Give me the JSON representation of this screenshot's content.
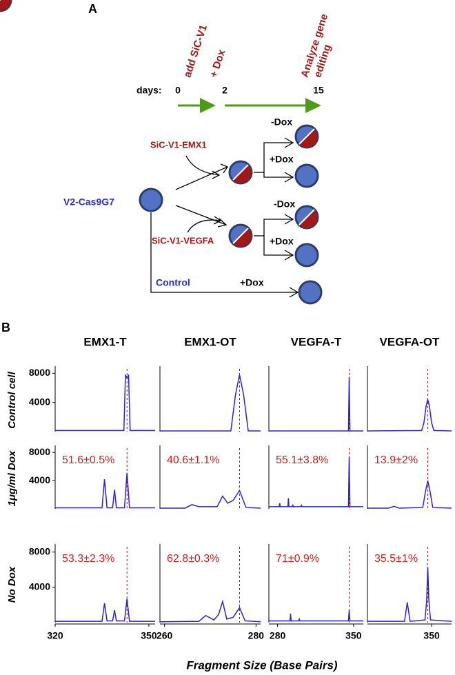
{
  "panel_a": {
    "label": "A",
    "days_label": "days:",
    "days": [
      "0",
      "2",
      "15"
    ],
    "steps": [
      "add SiC-V1",
      "+ Dox",
      [
        "Analyze gene",
        "editing"
      ]
    ],
    "cell_line": "V2-Cas9G7",
    "constructs": [
      "SiC-V1-EMX1",
      "SiC-V1-VEGFA"
    ],
    "control": "Control",
    "treatments": [
      "-Dox",
      "+Dox",
      "-Dox",
      "+Dox",
      "+Dox"
    ]
  },
  "panel_b": {
    "label": "B",
    "columns": [
      "EMX1-T",
      "EMX1-OT",
      "VEGFA-T",
      "VEGFA-OT"
    ],
    "rows": [
      "Control cell",
      "1μg/ml Dox",
      "No Dox"
    ],
    "x_axis_label": "Fragment Size (Base Pairs)"
  },
  "chart_data": [
    {
      "type": "line",
      "color": "#2a22dd",
      "x": [
        320,
        342,
        342.5,
        343,
        343.5,
        344,
        352
      ],
      "values": [
        150,
        150,
        7800,
        7300,
        7800,
        150,
        150
      ],
      "xlim": [
        320,
        352
      ],
      "ylim": [
        0,
        8600
      ],
      "yticks": [
        4000,
        8000
      ],
      "ref_x": 343
    },
    {
      "type": "line",
      "color": "#2a22dd",
      "x": [
        259,
        274.5,
        275.5,
        276.4,
        277.3,
        278.3,
        281
      ],
      "values": [
        100,
        100,
        5000,
        7800,
        5000,
        100,
        100
      ],
      "xlim": [
        259,
        281
      ],
      "ylim": [
        0,
        8600
      ],
      "ref_x": 276.4
    },
    {
      "type": "line",
      "color": "#2a22dd",
      "x": [
        272,
        345.3,
        346,
        346.7,
        359
      ],
      "values": [
        100,
        100,
        7500,
        100,
        100
      ],
      "xlim": [
        272,
        359
      ],
      "ylim": [
        0,
        8600
      ],
      "ref_x": 346
    },
    {
      "type": "line",
      "color": "#2a22dd",
      "x": [
        292,
        341,
        343,
        345,
        346.5,
        348,
        350,
        352,
        368
      ],
      "values": [
        100,
        150,
        1200,
        3500,
        4400,
        3500,
        1200,
        150,
        100
      ],
      "xlim": [
        292,
        368
      ],
      "ylim": [
        0,
        8600
      ],
      "ref_x": 346.5
    },
    {
      "type": "line",
      "color": "#2a22dd",
      "x": [
        320,
        335,
        335.8,
        336.6,
        338.4,
        339,
        339.6,
        342.2,
        343,
        343.8,
        352
      ],
      "values": [
        150,
        150,
        4200,
        150,
        150,
        2700,
        150,
        150,
        5100,
        150,
        150
      ],
      "xlim": [
        320,
        352
      ],
      "ylim": [
        0,
        8600
      ],
      "yticks": [
        4000,
        8000
      ],
      "ref_x": 343,
      "annotation": "51.6±0.5%"
    },
    {
      "type": "line",
      "color": "#2a22dd",
      "x": [
        259,
        264.5,
        266,
        267.5,
        271.5,
        272.7,
        273.8,
        275,
        276.4,
        277.8,
        281
      ],
      "values": [
        100,
        100,
        600,
        300,
        300,
        1800,
        800,
        1200,
        2600,
        200,
        100
      ],
      "xlim": [
        259,
        281
      ],
      "ylim": [
        0,
        8600
      ],
      "ref_x": 276.4,
      "annotation": "40.6±1.1%"
    },
    {
      "type": "line",
      "color": "#2a22dd",
      "x": [
        272,
        281.5,
        282,
        282.5,
        289.5,
        290,
        290.5,
        293.5,
        294,
        294.5,
        301.5,
        302,
        302.5,
        345.3,
        346,
        346.7,
        359
      ],
      "values": [
        300,
        300,
        800,
        300,
        300,
        1500,
        300,
        300,
        600,
        300,
        300,
        500,
        300,
        300,
        7400,
        300,
        300
      ],
      "xlim": [
        272,
        359
      ],
      "ylim": [
        0,
        8600
      ],
      "ref_x": 346,
      "annotation": "55.1±3.8%"
    },
    {
      "type": "line",
      "color": "#2a22dd",
      "x": [
        292,
        311,
        316,
        321,
        342,
        344.5,
        346.5,
        348.5,
        351,
        368
      ],
      "values": [
        100,
        100,
        350,
        100,
        200,
        2500,
        4000,
        2500,
        200,
        100
      ],
      "xlim": [
        292,
        368
      ],
      "ylim": [
        0,
        8600
      ],
      "ref_x": 346.5,
      "annotation": "13.9±2%"
    },
    {
      "type": "line",
      "color": "#2a22dd",
      "x": [
        320,
        335,
        335.8,
        336.6,
        338.4,
        339,
        339.6,
        342.2,
        343,
        343.8,
        352
      ],
      "values": [
        150,
        150,
        2200,
        200,
        200,
        1400,
        200,
        200,
        2700,
        150,
        150
      ],
      "xlim": [
        320,
        352
      ],
      "ylim": [
        0,
        8600
      ],
      "yticks": [
        4000,
        8000
      ],
      "xticks": [
        320,
        350
      ],
      "ref_x": 343,
      "annotation": "53.3±2.3%"
    },
    {
      "type": "line",
      "color": "#2a22dd",
      "x": [
        259,
        267.5,
        269,
        270.8,
        271.8,
        272.7,
        273.6,
        275,
        276.4,
        277.6,
        281
      ],
      "values": [
        100,
        150,
        800,
        300,
        900,
        2400,
        400,
        600,
        1700,
        200,
        100
      ],
      "xlim": [
        259,
        281
      ],
      "ylim": [
        0,
        8600
      ],
      "xticks": [
        260,
        280
      ],
      "ref_x": 276.4,
      "annotation": "62.8±0.3%"
    },
    {
      "type": "line",
      "color": "#2a22dd",
      "x": [
        272,
        291.5,
        292,
        292.5,
        299.5,
        300,
        300.5,
        345.3,
        346,
        346.7,
        359
      ],
      "values": [
        200,
        200,
        1000,
        200,
        200,
        400,
        200,
        200,
        1400,
        200,
        200
      ],
      "xlim": [
        272,
        359
      ],
      "ylim": [
        0,
        8600
      ],
      "xticks": [
        280,
        350
      ],
      "ref_x": 346,
      "annotation": "71±0.9%"
    },
    {
      "type": "line",
      "color": "#2a22dd",
      "x": [
        292,
        325.5,
        328,
        330.5,
        344,
        345.5,
        346.5,
        347.5,
        349,
        368
      ],
      "values": [
        150,
        150,
        2300,
        150,
        300,
        2500,
        6300,
        2500,
        300,
        150
      ],
      "xlim": [
        292,
        368
      ],
      "ylim": [
        0,
        8600
      ],
      "xticks": [
        350
      ],
      "ref_x": 346.5,
      "annotation": "35.5±1%"
    }
  ]
}
